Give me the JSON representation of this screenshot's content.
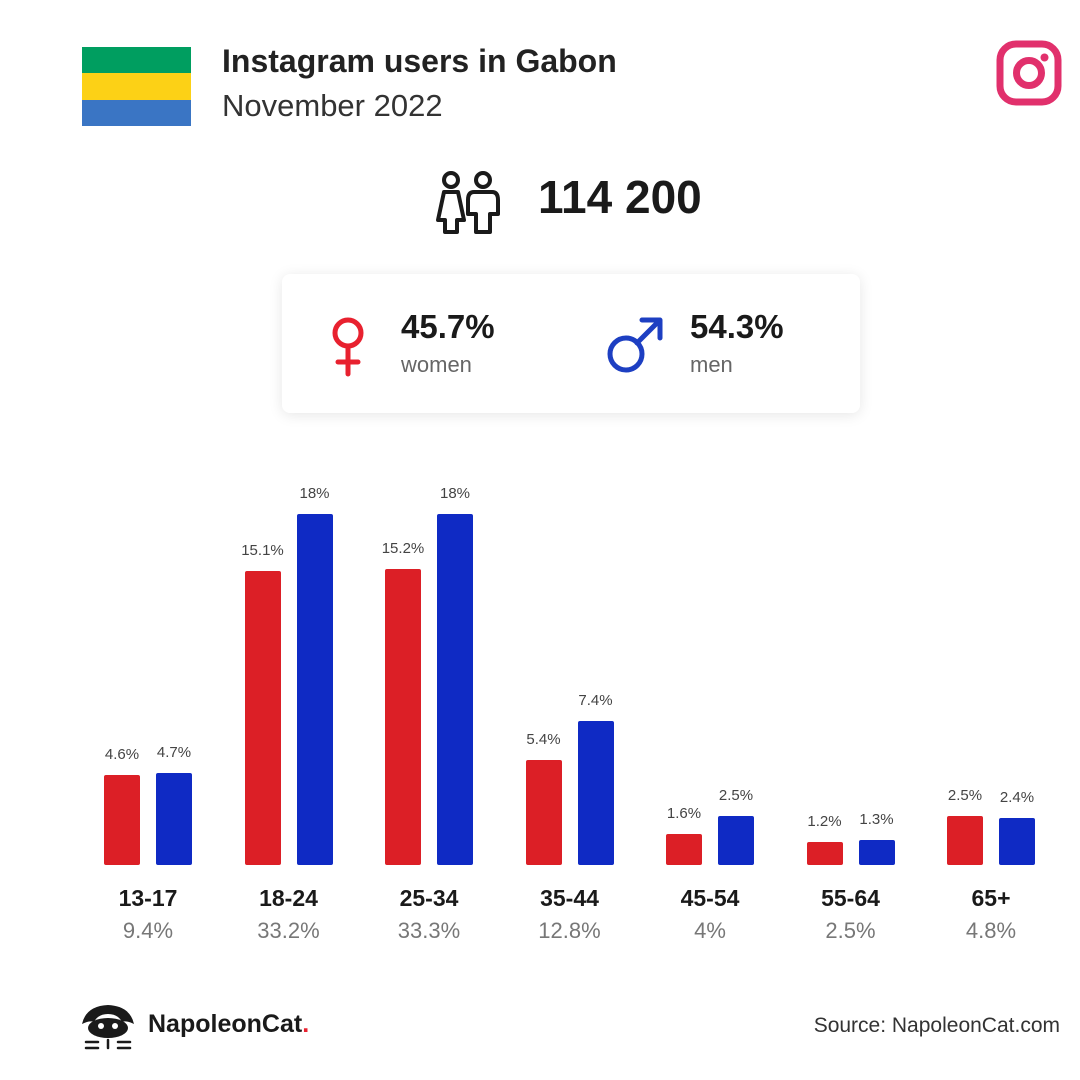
{
  "header": {
    "title": "Instagram users in Gabon",
    "subtitle": "November 2022",
    "flag_colors": [
      "#009e60",
      "#fcd116",
      "#3a75c4"
    ],
    "platform_icon": "instagram-icon"
  },
  "summary": {
    "total": "114 200",
    "icon": "users-icon"
  },
  "gender": {
    "women": {
      "pct": "45.7%",
      "label": "women",
      "color": "#e8212f",
      "icon": "female-icon"
    },
    "men": {
      "pct": "54.3%",
      "label": "men",
      "color": "#1d3fc2",
      "icon": "male-icon"
    }
  },
  "chart_data": {
    "type": "bar",
    "categories": [
      "13-17",
      "18-24",
      "25-34",
      "35-44",
      "45-54",
      "55-64",
      "65+"
    ],
    "category_totals": [
      "9.4%",
      "33.2%",
      "33.3%",
      "12.8%",
      "4%",
      "2.5%",
      "4.8%"
    ],
    "series": [
      {
        "name": "women",
        "color": "#dc1f26",
        "values": [
          4.6,
          15.1,
          15.2,
          5.4,
          1.6,
          1.2,
          2.5
        ],
        "labels": [
          "4.6%",
          "15.1%",
          "15.2%",
          "5.4%",
          "1.6%",
          "1.2%",
          "2.5%"
        ]
      },
      {
        "name": "men",
        "color": "#0f2ac4",
        "values": [
          4.7,
          18,
          18,
          7.4,
          2.5,
          1.3,
          2.4
        ],
        "labels": [
          "4.7%",
          "18%",
          "18%",
          "7.4%",
          "2.5%",
          "1.3%",
          "2.4%"
        ]
      }
    ],
    "ylim": [
      0,
      18
    ],
    "grid": false
  },
  "footer": {
    "brand": "NapoleonCat",
    "brand_dot": ".",
    "source": "Source: NapoleonCat.com"
  }
}
